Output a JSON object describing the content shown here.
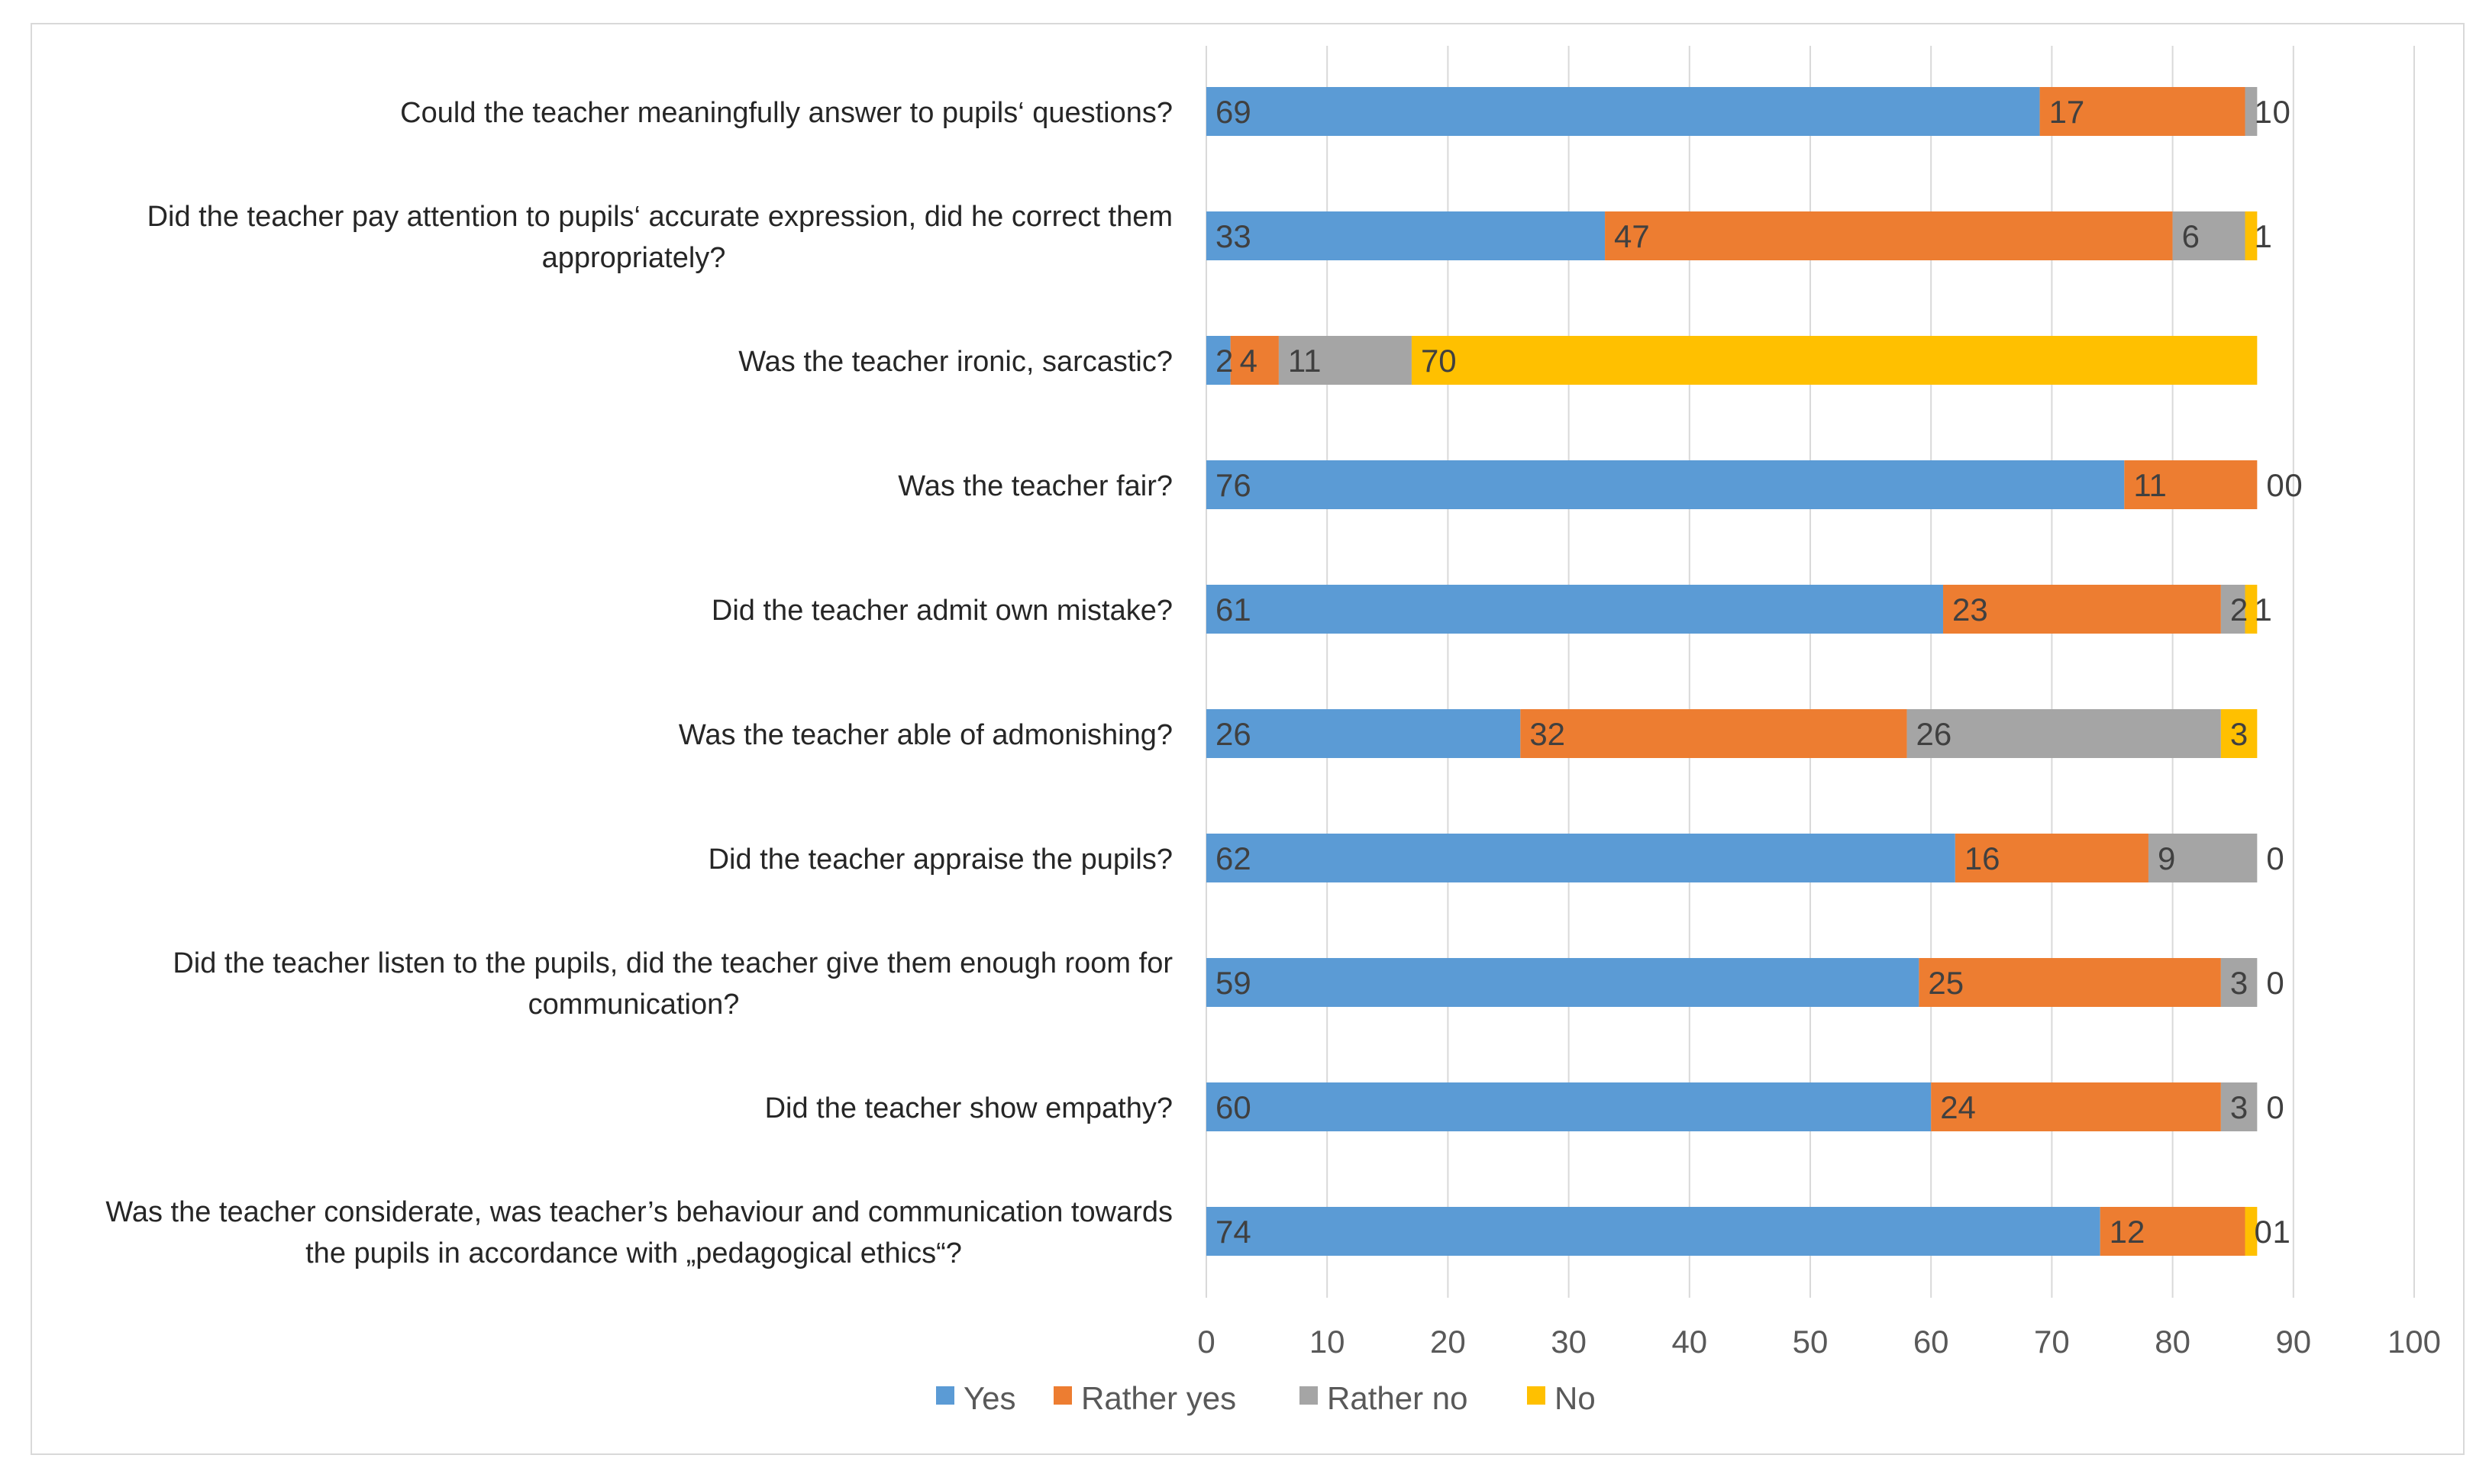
{
  "chart_data": {
    "type": "bar",
    "orientation": "horizontal",
    "stacked": true,
    "title": "",
    "xlabel": "",
    "ylabel": "",
    "xlim": [
      0,
      100
    ],
    "xticks": [
      0,
      10,
      20,
      30,
      40,
      50,
      60,
      70,
      80,
      90,
      100
    ],
    "grid": true,
    "legend_position": "bottom",
    "categories": [
      [
        "Could the teacher meaningfully answer to pupils‘ questions?"
      ],
      [
        "Did the teacher pay attention to pupils‘ accurate expression, did he correct them",
        "appropriately?"
      ],
      [
        "Was the teacher ironic, sarcastic?"
      ],
      [
        "Was the teacher fair?"
      ],
      [
        "Did the teacher admit own mistake?"
      ],
      [
        "Was the teacher able of admonishing?"
      ],
      [
        "Did the teacher appraise the pupils?"
      ],
      [
        "Did the teacher listen to the pupils, did the teacher give them enough room for",
        "communication?"
      ],
      [
        "Did the teacher show empathy?"
      ],
      [
        "Was the teacher considerate, was teacher’s behaviour and communication towards",
        "the pupils in accordance with „pedagogical ethics“?"
      ]
    ],
    "series": [
      {
        "name": "Yes",
        "color": "#5b9bd5",
        "values": [
          69,
          33,
          2,
          76,
          61,
          26,
          62,
          59,
          60,
          74
        ]
      },
      {
        "name": "Rather yes",
        "color": "#ed7d31",
        "values": [
          17,
          47,
          4,
          11,
          23,
          32,
          16,
          25,
          24,
          12
        ]
      },
      {
        "name": "Rather no",
        "color": "#a5a5a5",
        "values": [
          1,
          6,
          11,
          0,
          2,
          26,
          9,
          3,
          3,
          0
        ]
      },
      {
        "name": "No",
        "color": "#ffc000",
        "values": [
          0,
          1,
          70,
          0,
          1,
          3,
          0,
          0,
          0,
          1
        ]
      }
    ]
  }
}
